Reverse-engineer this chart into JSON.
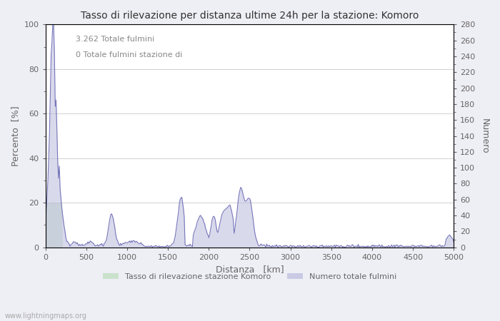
{
  "title": "Tasso di rilevazione per distanza ultime 24h per la stazione: Komoro",
  "xlabel": "Distanza   [km]",
  "ylabel_left": "Percento  [%]",
  "ylabel_right": "Numero",
  "annotation_line1": "3.262 Totale fulmini",
  "annotation_line2": "0 Totale fulmini stazione di",
  "legend_label_green": "Tasso di rilevazione stazione Komoro",
  "legend_label_blue": "Numero totale fulmini",
  "watermark": "www.lightningmaps.org",
  "xlim": [
    0,
    5000
  ],
  "ylim_left": [
    0,
    100
  ],
  "ylim_right": [
    0,
    280
  ],
  "xticks": [
    0,
    500,
    1000,
    1500,
    2000,
    2500,
    3000,
    3500,
    4000,
    4500,
    5000
  ],
  "yticks_left": [
    0,
    20,
    40,
    60,
    80,
    100
  ],
  "yticks_right": [
    0,
    20,
    40,
    60,
    80,
    100,
    120,
    140,
    160,
    180,
    200,
    220,
    240,
    260,
    280
  ],
  "bg_color": "#eeeef5",
  "plot_bg_color": "#ffffff",
  "line_color": "#7777bb",
  "fill_color_blue": "#bbbbdd",
  "fill_color_green": "#bbddbb",
  "grid_color": "#cccccc",
  "title_color": "#333333",
  "label_color": "#666666"
}
